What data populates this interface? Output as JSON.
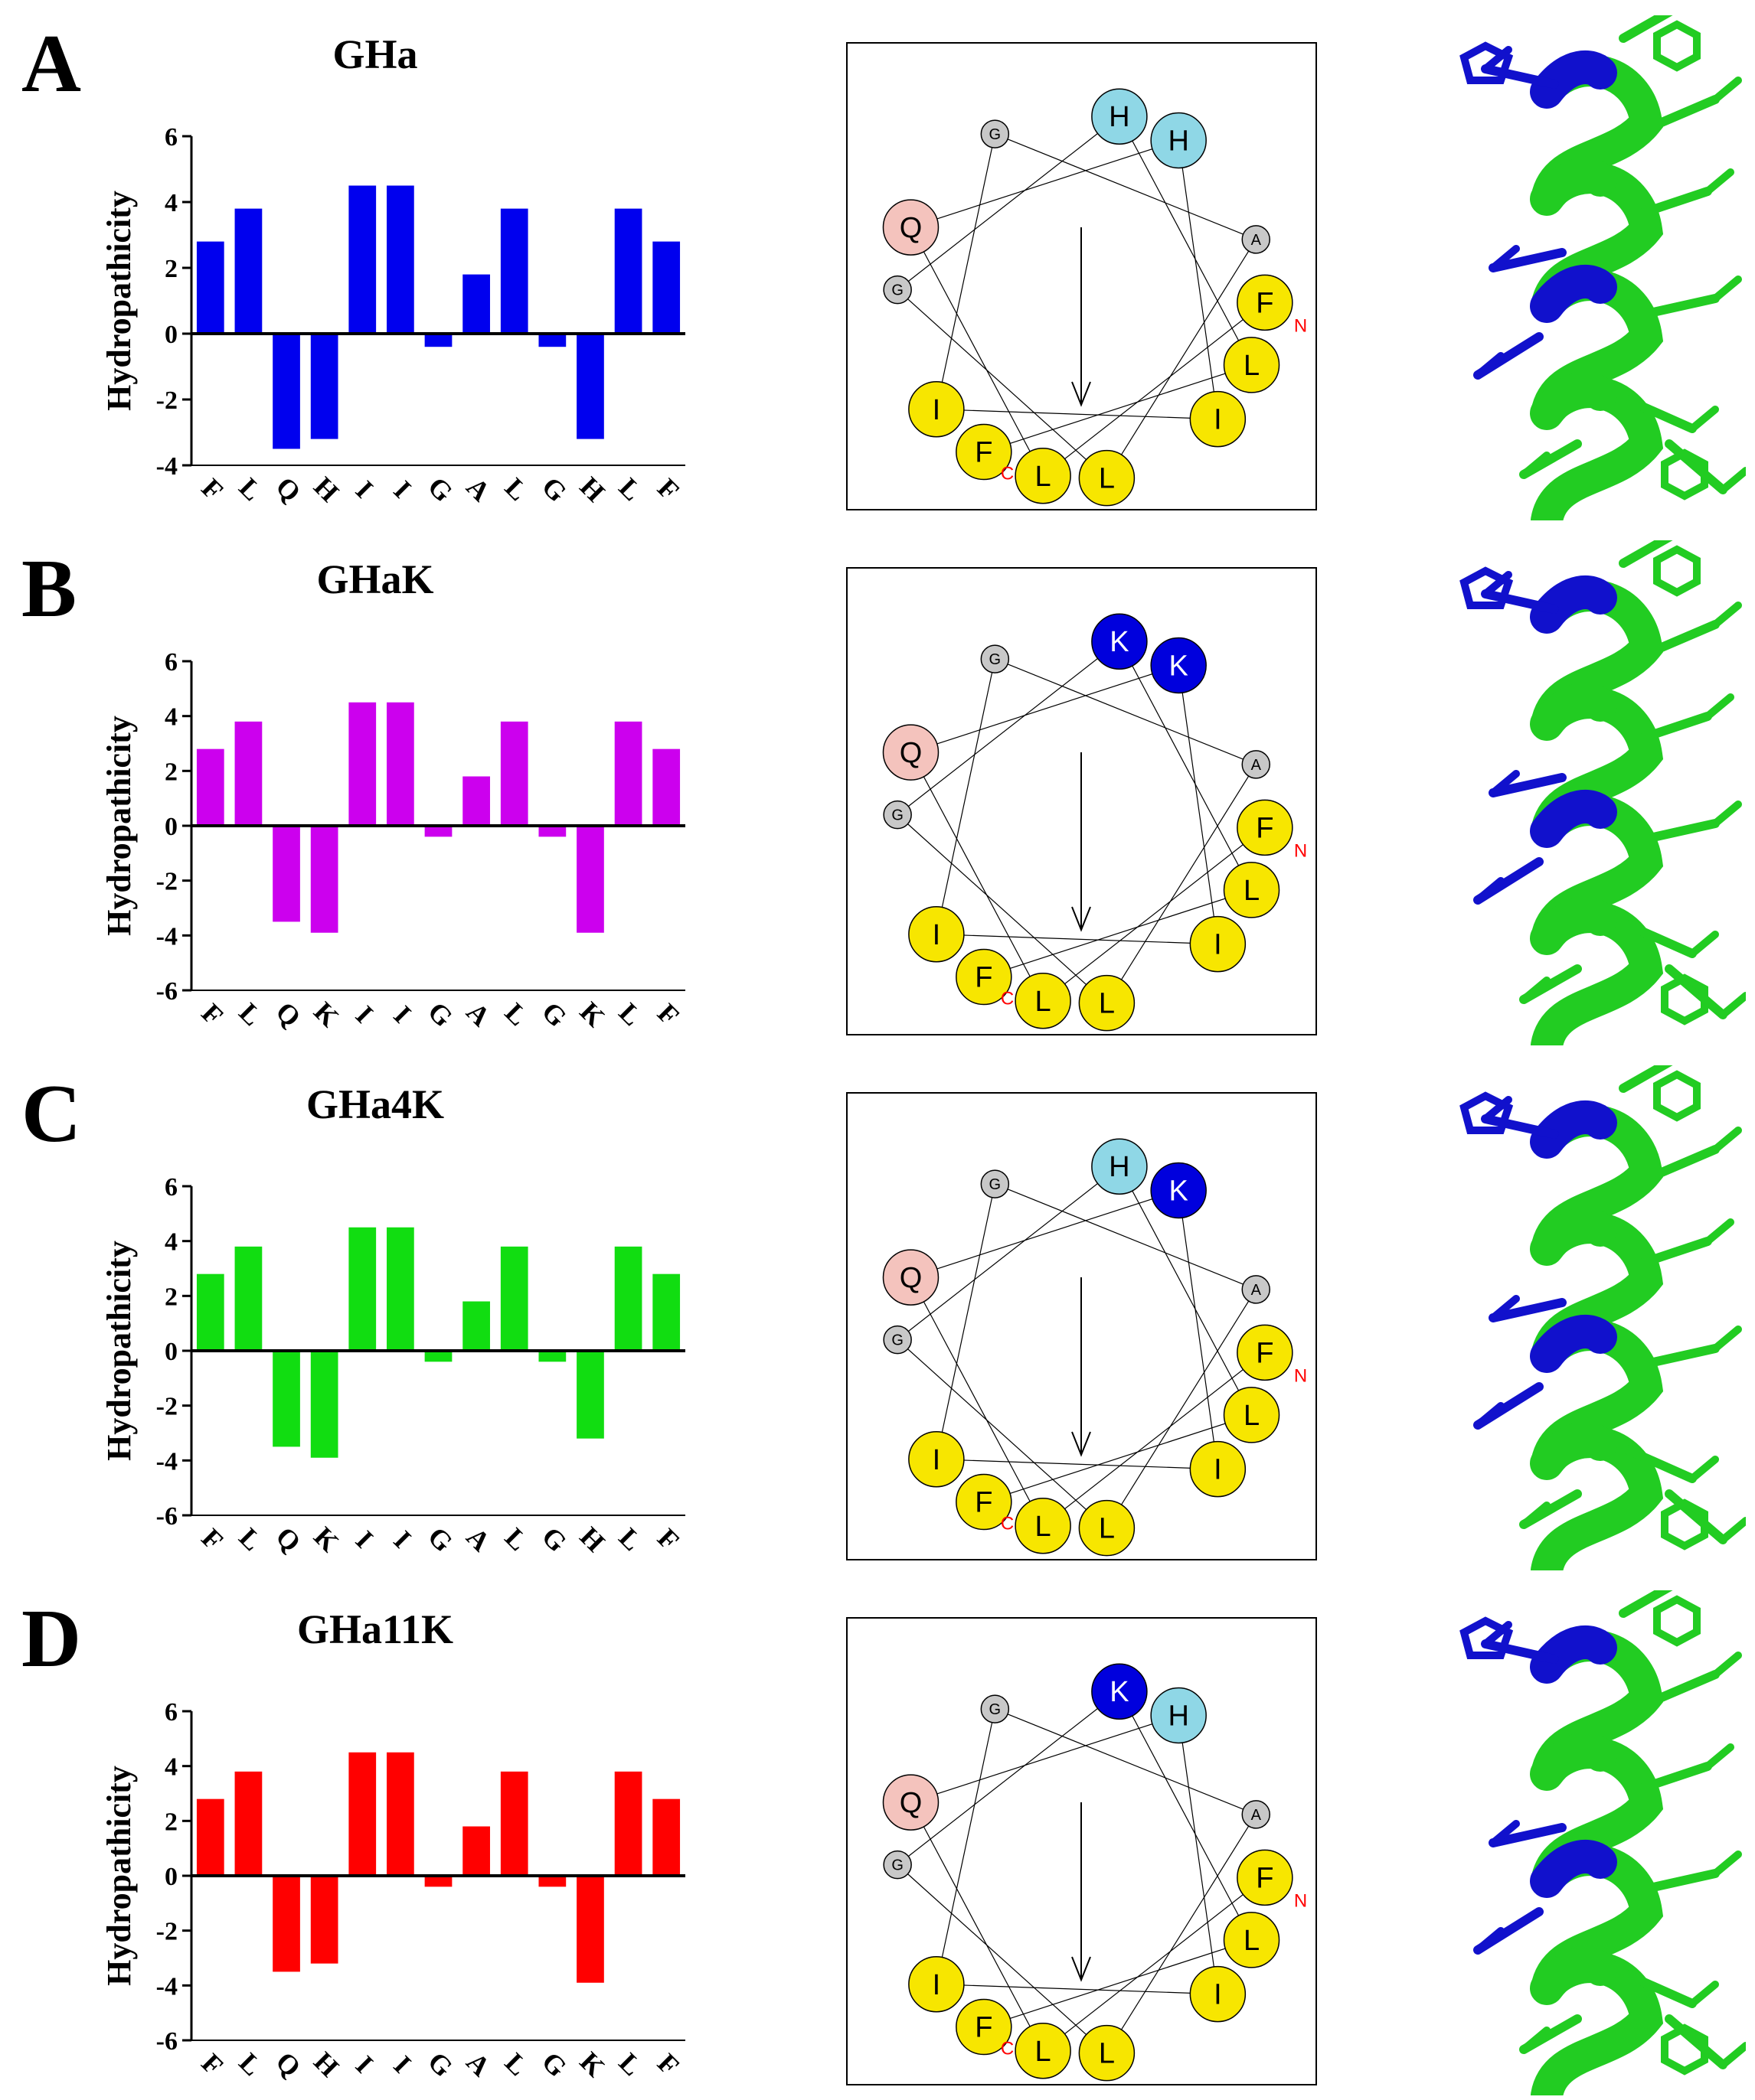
{
  "panels": [
    {
      "letter": "A",
      "title": "GHa",
      "color": "#0000ee",
      "chart_data": {
        "type": "bar",
        "categories": [
          "F",
          "L",
          "Q",
          "H",
          "I",
          "I",
          "G",
          "A",
          "L",
          "G",
          "H",
          "L",
          "F"
        ],
        "values": [
          2.8,
          3.8,
          -3.5,
          -3.2,
          4.5,
          4.5,
          -0.4,
          1.8,
          3.8,
          -0.4,
          -3.2,
          3.8,
          2.8
        ],
        "ylabel": "Hydropathicity",
        "ylim": [
          -4,
          6
        ],
        "yticks": [
          -4,
          -2,
          0,
          2,
          4,
          6
        ]
      },
      "wheel": [
        {
          "label": "F",
          "fill": "#f7e600",
          "big": true
        },
        {
          "label": "L",
          "fill": "#f7e600",
          "big": true
        },
        {
          "label": "Q",
          "fill": "#f4c3bd",
          "big": true
        },
        {
          "label": "H",
          "fill": "#8fd7e6",
          "big": true
        },
        {
          "label": "I",
          "fill": "#f7e600",
          "big": true
        },
        {
          "label": "I",
          "fill": "#f7e600",
          "big": true
        },
        {
          "label": "G",
          "fill": "#c8c8c8",
          "big": false
        },
        {
          "label": "A",
          "fill": "#c8c8c8",
          "big": false
        },
        {
          "label": "L",
          "fill": "#f7e600",
          "big": true
        },
        {
          "label": "G",
          "fill": "#c8c8c8",
          "big": false
        },
        {
          "label": "H",
          "fill": "#8fd7e6",
          "big": true
        },
        {
          "label": "L",
          "fill": "#f7e600",
          "big": true
        },
        {
          "label": "F",
          "fill": "#f7e600",
          "big": true
        }
      ],
      "n_label": "N",
      "c_label": "C"
    },
    {
      "letter": "B",
      "title": "GHaK",
      "color": "#cc00ee",
      "chart_data": {
        "type": "bar",
        "categories": [
          "F",
          "L",
          "Q",
          "K",
          "I",
          "I",
          "G",
          "A",
          "L",
          "G",
          "K",
          "L",
          "F"
        ],
        "values": [
          2.8,
          3.8,
          -3.5,
          -3.9,
          4.5,
          4.5,
          -0.4,
          1.8,
          3.8,
          -0.4,
          -3.9,
          3.8,
          2.8
        ],
        "ylabel": "Hydropathicity",
        "ylim": [
          -6,
          6
        ],
        "yticks": [
          -6,
          -4,
          -2,
          0,
          2,
          4,
          6
        ]
      },
      "wheel": [
        {
          "label": "F",
          "fill": "#f7e600",
          "big": true
        },
        {
          "label": "L",
          "fill": "#f7e600",
          "big": true
        },
        {
          "label": "Q",
          "fill": "#f4c3bd",
          "big": true
        },
        {
          "label": "K",
          "fill": "#0000dd",
          "big": true
        },
        {
          "label": "I",
          "fill": "#f7e600",
          "big": true
        },
        {
          "label": "I",
          "fill": "#f7e600",
          "big": true
        },
        {
          "label": "G",
          "fill": "#c8c8c8",
          "big": false
        },
        {
          "label": "A",
          "fill": "#c8c8c8",
          "big": false
        },
        {
          "label": "L",
          "fill": "#f7e600",
          "big": true
        },
        {
          "label": "G",
          "fill": "#c8c8c8",
          "big": false
        },
        {
          "label": "K",
          "fill": "#0000dd",
          "big": true
        },
        {
          "label": "L",
          "fill": "#f7e600",
          "big": true
        },
        {
          "label": "F",
          "fill": "#f7e600",
          "big": true
        }
      ],
      "n_label": "N",
      "c_label": "C"
    },
    {
      "letter": "C",
      "title": "GHa4K",
      "color": "#11dd11",
      "chart_data": {
        "type": "bar",
        "categories": [
          "F",
          "L",
          "Q",
          "K",
          "I",
          "I",
          "G",
          "A",
          "L",
          "G",
          "H",
          "L",
          "F"
        ],
        "values": [
          2.8,
          3.8,
          -3.5,
          -3.9,
          4.5,
          4.5,
          -0.4,
          1.8,
          3.8,
          -0.4,
          -3.2,
          3.8,
          2.8
        ],
        "ylabel": "Hydropathicity",
        "ylim": [
          -6,
          6
        ],
        "yticks": [
          -6,
          -4,
          -2,
          0,
          2,
          4,
          6
        ]
      },
      "wheel": [
        {
          "label": "F",
          "fill": "#f7e600",
          "big": true
        },
        {
          "label": "L",
          "fill": "#f7e600",
          "big": true
        },
        {
          "label": "Q",
          "fill": "#f4c3bd",
          "big": true
        },
        {
          "label": "K",
          "fill": "#0000dd",
          "big": true
        },
        {
          "label": "I",
          "fill": "#f7e600",
          "big": true
        },
        {
          "label": "I",
          "fill": "#f7e600",
          "big": true
        },
        {
          "label": "G",
          "fill": "#c8c8c8",
          "big": false
        },
        {
          "label": "A",
          "fill": "#c8c8c8",
          "big": false
        },
        {
          "label": "L",
          "fill": "#f7e600",
          "big": true
        },
        {
          "label": "G",
          "fill": "#c8c8c8",
          "big": false
        },
        {
          "label": "H",
          "fill": "#8fd7e6",
          "big": true
        },
        {
          "label": "L",
          "fill": "#f7e600",
          "big": true
        },
        {
          "label": "F",
          "fill": "#f7e600",
          "big": true
        }
      ],
      "n_label": "N",
      "c_label": "C"
    },
    {
      "letter": "D",
      "title": "GHa11K",
      "color": "#ff0000",
      "chart_data": {
        "type": "bar",
        "categories": [
          "F",
          "L",
          "Q",
          "H",
          "I",
          "I",
          "G",
          "A",
          "L",
          "G",
          "K",
          "L",
          "F"
        ],
        "values": [
          2.8,
          3.8,
          -3.5,
          -3.2,
          4.5,
          4.5,
          -0.4,
          1.8,
          3.8,
          -0.4,
          -3.9,
          3.8,
          2.8
        ],
        "ylabel": "Hydropathicity",
        "ylim": [
          -6,
          6
        ],
        "yticks": [
          -6,
          -4,
          -2,
          0,
          2,
          4,
          6
        ]
      },
      "wheel": [
        {
          "label": "F",
          "fill": "#f7e600",
          "big": true
        },
        {
          "label": "L",
          "fill": "#f7e600",
          "big": true
        },
        {
          "label": "Q",
          "fill": "#f4c3bd",
          "big": true
        },
        {
          "label": "H",
          "fill": "#8fd7e6",
          "big": true
        },
        {
          "label": "I",
          "fill": "#f7e600",
          "big": true
        },
        {
          "label": "I",
          "fill": "#f7e600",
          "big": true
        },
        {
          "label": "G",
          "fill": "#c8c8c8",
          "big": false
        },
        {
          "label": "A",
          "fill": "#c8c8c8",
          "big": false
        },
        {
          "label": "L",
          "fill": "#f7e600",
          "big": true
        },
        {
          "label": "G",
          "fill": "#c8c8c8",
          "big": false
        },
        {
          "label": "K",
          "fill": "#0000dd",
          "big": true
        },
        {
          "label": "L",
          "fill": "#f7e600",
          "big": true
        },
        {
          "label": "F",
          "fill": "#f7e600",
          "big": true
        }
      ],
      "n_label": "N",
      "c_label": "C"
    }
  ],
  "structure_colors": {
    "helix": "#22cc22",
    "cationic": "#1111cc"
  }
}
